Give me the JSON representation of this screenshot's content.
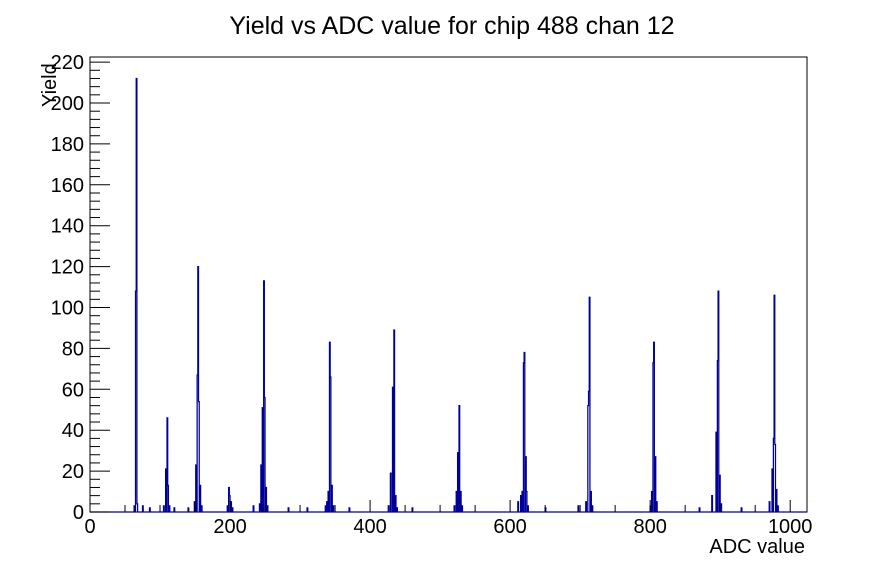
{
  "figure": {
    "background": "#ffffff",
    "frame_color": "#000000"
  },
  "chart_data": {
    "type": "bar",
    "title": "Yield vs ADC value for chip 488 chan 12",
    "xlabel": "ADC value",
    "ylabel": "Yield",
    "xlim": [
      0,
      1024
    ],
    "ylim": [
      0,
      222.5
    ],
    "grid": false,
    "legend": "none",
    "x_major_ticks": [
      0,
      200,
      400,
      600,
      800,
      1000
    ],
    "x_minor_step": 50,
    "y_major_ticks": [
      0,
      20,
      40,
      60,
      80,
      100,
      120,
      140,
      160,
      180,
      200,
      220
    ],
    "y_minor_step": 4,
    "line_color": "#000099",
    "bin_width": 1,
    "bins": [
      [
        63,
        3
      ],
      [
        65,
        108
      ],
      [
        66,
        212
      ],
      [
        67,
        4
      ],
      [
        75,
        3
      ],
      [
        85,
        2
      ],
      [
        105,
        3
      ],
      [
        108,
        21
      ],
      [
        110,
        46
      ],
      [
        111,
        13
      ],
      [
        113,
        3
      ],
      [
        120,
        2
      ],
      [
        140,
        2
      ],
      [
        149,
        5
      ],
      [
        151,
        23
      ],
      [
        153,
        67
      ],
      [
        154,
        120
      ],
      [
        155,
        54
      ],
      [
        157,
        13
      ],
      [
        159,
        3
      ],
      [
        196,
        3
      ],
      [
        198,
        12
      ],
      [
        199,
        8
      ],
      [
        201,
        5
      ],
      [
        203,
        2
      ],
      [
        233,
        3
      ],
      [
        242,
        4
      ],
      [
        244,
        23
      ],
      [
        246,
        51
      ],
      [
        248,
        113
      ],
      [
        249,
        56
      ],
      [
        251,
        12
      ],
      [
        253,
        3
      ],
      [
        283,
        2
      ],
      [
        310,
        2
      ],
      [
        336,
        3
      ],
      [
        338,
        5
      ],
      [
        340,
        10
      ],
      [
        342,
        83
      ],
      [
        343,
        66
      ],
      [
        345,
        13
      ],
      [
        347,
        3
      ],
      [
        370,
        2
      ],
      [
        426,
        3
      ],
      [
        429,
        19
      ],
      [
        432,
        61
      ],
      [
        434,
        89
      ],
      [
        436,
        8
      ],
      [
        438,
        2
      ],
      [
        460,
        2
      ],
      [
        520,
        3
      ],
      [
        523,
        10
      ],
      [
        525,
        29
      ],
      [
        527,
        52
      ],
      [
        529,
        10
      ],
      [
        531,
        3
      ],
      [
        611,
        5
      ],
      [
        615,
        8
      ],
      [
        617,
        10
      ],
      [
        619,
        73
      ],
      [
        620,
        78
      ],
      [
        622,
        27
      ],
      [
        623,
        10
      ],
      [
        625,
        3
      ],
      [
        650,
        2
      ],
      [
        697,
        3
      ],
      [
        708,
        5
      ],
      [
        711,
        52
      ],
      [
        712,
        59
      ],
      [
        713,
        105
      ],
      [
        715,
        10
      ],
      [
        717,
        3
      ],
      [
        800,
        3
      ],
      [
        802,
        10
      ],
      [
        804,
        73
      ],
      [
        805,
        83
      ],
      [
        807,
        27
      ],
      [
        809,
        5
      ],
      [
        870,
        2
      ],
      [
        888,
        8
      ],
      [
        894,
        39
      ],
      [
        896,
        74
      ],
      [
        897,
        108
      ],
      [
        899,
        18
      ],
      [
        901,
        4
      ],
      [
        930,
        2
      ],
      [
        970,
        5
      ],
      [
        974,
        21
      ],
      [
        976,
        36
      ],
      [
        977,
        106
      ],
      [
        978,
        33
      ],
      [
        980,
        11
      ],
      [
        982,
        3
      ]
    ]
  }
}
